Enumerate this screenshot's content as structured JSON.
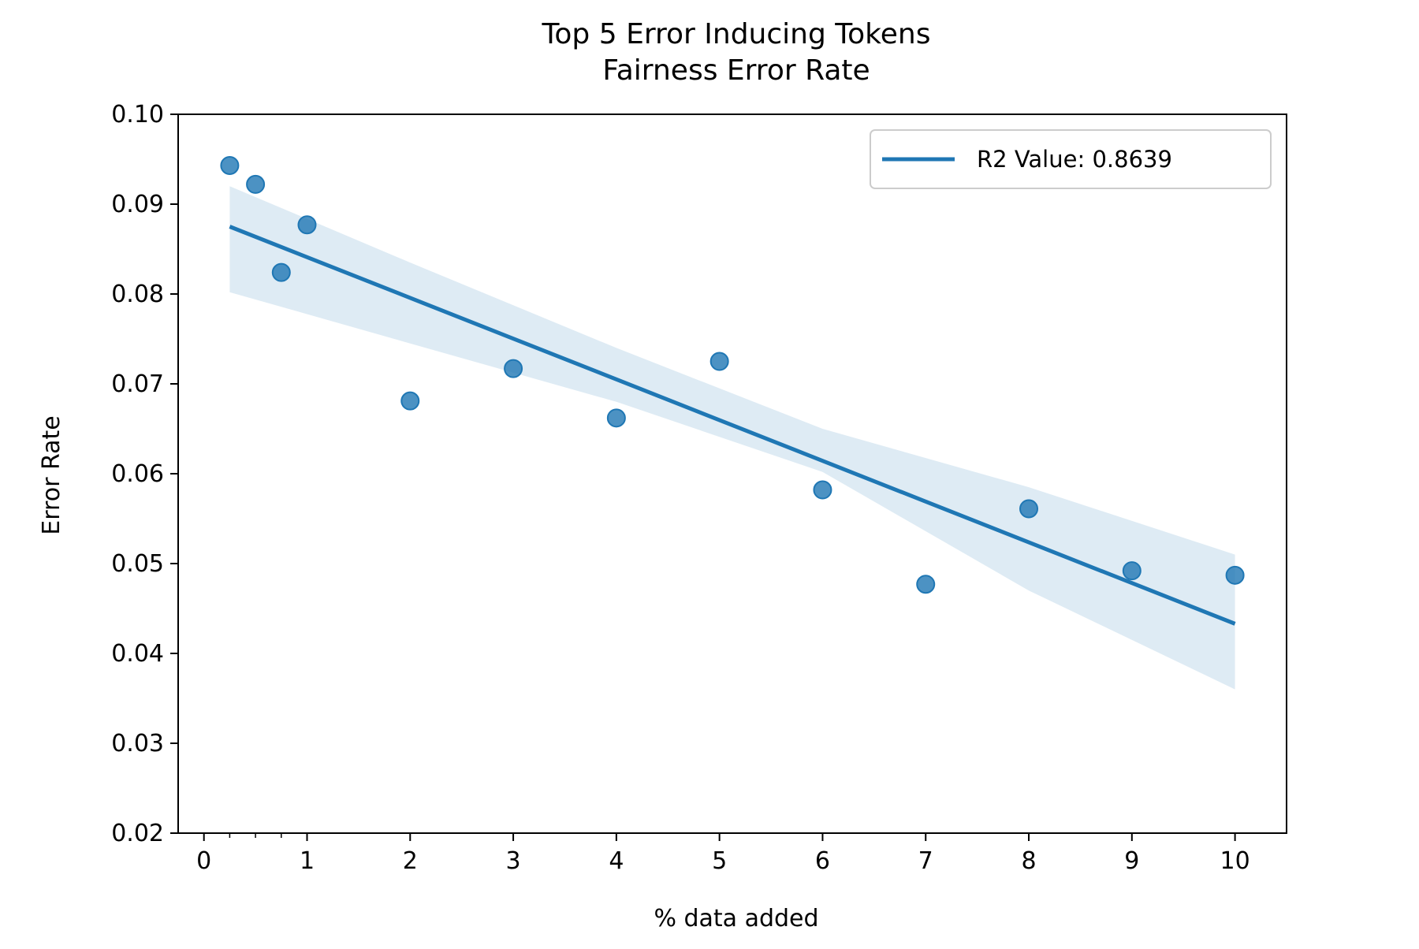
{
  "chart_data": {
    "type": "scatter",
    "title": "Top 5 Error Inducing Tokens",
    "subtitle": "Fairness Error Rate",
    "xlabel": "% data added",
    "ylabel": "Error Rate",
    "xlim": [
      -0.25,
      10.5
    ],
    "ylim": [
      0.02,
      0.1
    ],
    "xticks": [
      0,
      1,
      2,
      3,
      4,
      5,
      6,
      7,
      8,
      9,
      10
    ],
    "xtick_labels": [
      "0",
      "1",
      "2",
      "3",
      "4",
      "5",
      "6",
      "7",
      "8",
      "9",
      "10"
    ],
    "x_minor_ticks": [
      0.25,
      0.5,
      0.75
    ],
    "yticks": [
      0.02,
      0.03,
      0.04,
      0.05,
      0.06,
      0.07,
      0.08,
      0.09,
      0.1
    ],
    "ytick_labels": [
      "0.02",
      "0.03",
      "0.04",
      "0.05",
      "0.06",
      "0.07",
      "0.08",
      "0.09",
      "0.10"
    ],
    "grid": false,
    "legend_position": "top-right",
    "series": [
      {
        "name": "points",
        "kind": "scatter",
        "color": "#1f77b4",
        "x": [
          0.25,
          0.5,
          0.75,
          1,
          2,
          3,
          4,
          5,
          6,
          7,
          8,
          9,
          10
        ],
        "y": [
          0.0943,
          0.0922,
          0.0824,
          0.0877,
          0.0681,
          0.0717,
          0.0662,
          0.0725,
          0.0582,
          0.0477,
          0.0561,
          0.0492,
          0.0487
        ]
      },
      {
        "name": "R2 Value: 0.8639",
        "kind": "regression",
        "color": "#1f77b4",
        "x": [
          0.25,
          10
        ],
        "y": [
          0.0875,
          0.0433
        ]
      },
      {
        "name": "confidence band",
        "kind": "band",
        "color": "#1f77b4",
        "x": [
          0.25,
          2,
          4,
          6,
          8,
          10
        ],
        "lower": [
          0.0802,
          0.0745,
          0.068,
          0.0602,
          0.047,
          0.036
        ],
        "upper": [
          0.092,
          0.0835,
          0.074,
          0.065,
          0.0585,
          0.051
        ]
      }
    ],
    "legend": [
      {
        "label": "R2 Value: 0.8639",
        "color": "#1f77b4"
      }
    ]
  }
}
